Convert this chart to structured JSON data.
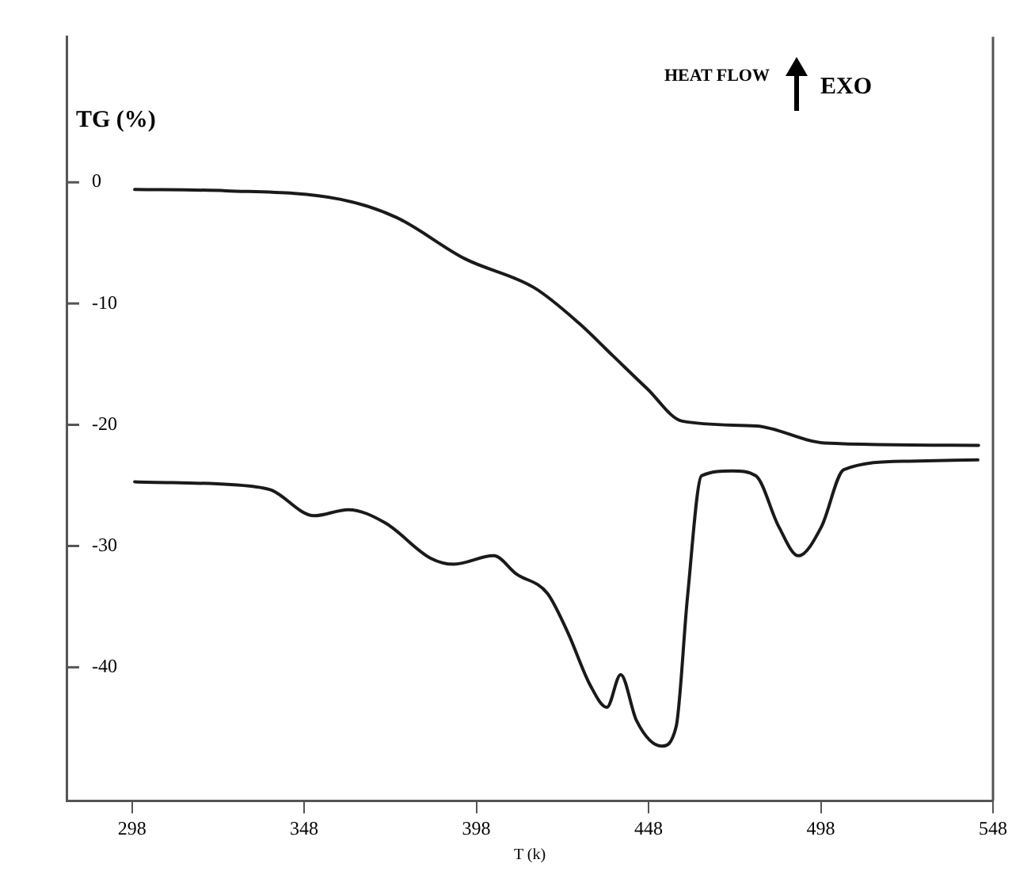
{
  "chart_data": {
    "type": "line",
    "xlabel": "T (k)",
    "ylabel": "TG (%)",
    "annotations": [
      "HEAT FLOW",
      "EXO"
    ],
    "xlim": [
      279,
      548
    ],
    "xticks": [
      298,
      348,
      398,
      448,
      498,
      548
    ],
    "ylim": [
      -51,
      12
    ],
    "yticks": [
      0,
      -10,
      -20,
      -30,
      -40
    ],
    "grid": false,
    "legend": false,
    "marker": "none",
    "line_style": "solid",
    "series": [
      {
        "color": "#1a1a1a",
        "x": [
          298.8,
          325.3,
          358.4,
          374.8,
          394.6,
          414.8,
          427.7,
          437.6,
          447.5,
          457.8,
          479.3,
          499.1,
          543.8
        ],
        "values": [
          -0.6,
          -0.7,
          -1.4,
          -2.9,
          -6.3,
          -8.7,
          -11.6,
          -14.3,
          -17.0,
          -19.7,
          -20.1,
          -21.5,
          -21.7
        ]
      },
      {
        "color": "#1a1a1a",
        "x": [
          298.8,
          333.5,
          338.6,
          350.9,
          360.8,
          371.6,
          384.7,
          391.5,
          403.0,
          409.6,
          418.6,
          424.5,
          431.1,
          435.9,
          439.9,
          444.5,
          451.8,
          456.0,
          459.3,
          463.4,
          472.4,
          479.1,
          485.8,
          491.5,
          498.2,
          504.7,
          523.6,
          543.6
        ],
        "values": [
          -24.7,
          -25.1,
          -25.4,
          -27.5,
          -27.0,
          -28.1,
          -31.0,
          -31.5,
          -30.8,
          -32.3,
          -33.9,
          -37.1,
          -41.5,
          -43.3,
          -40.6,
          -44.4,
          -46.5,
          -44.9,
          -34.2,
          -24.2,
          -23.8,
          -24.2,
          -28.4,
          -30.8,
          -28.4,
          -23.7,
          -23.0,
          -22.9
        ]
      }
    ]
  }
}
